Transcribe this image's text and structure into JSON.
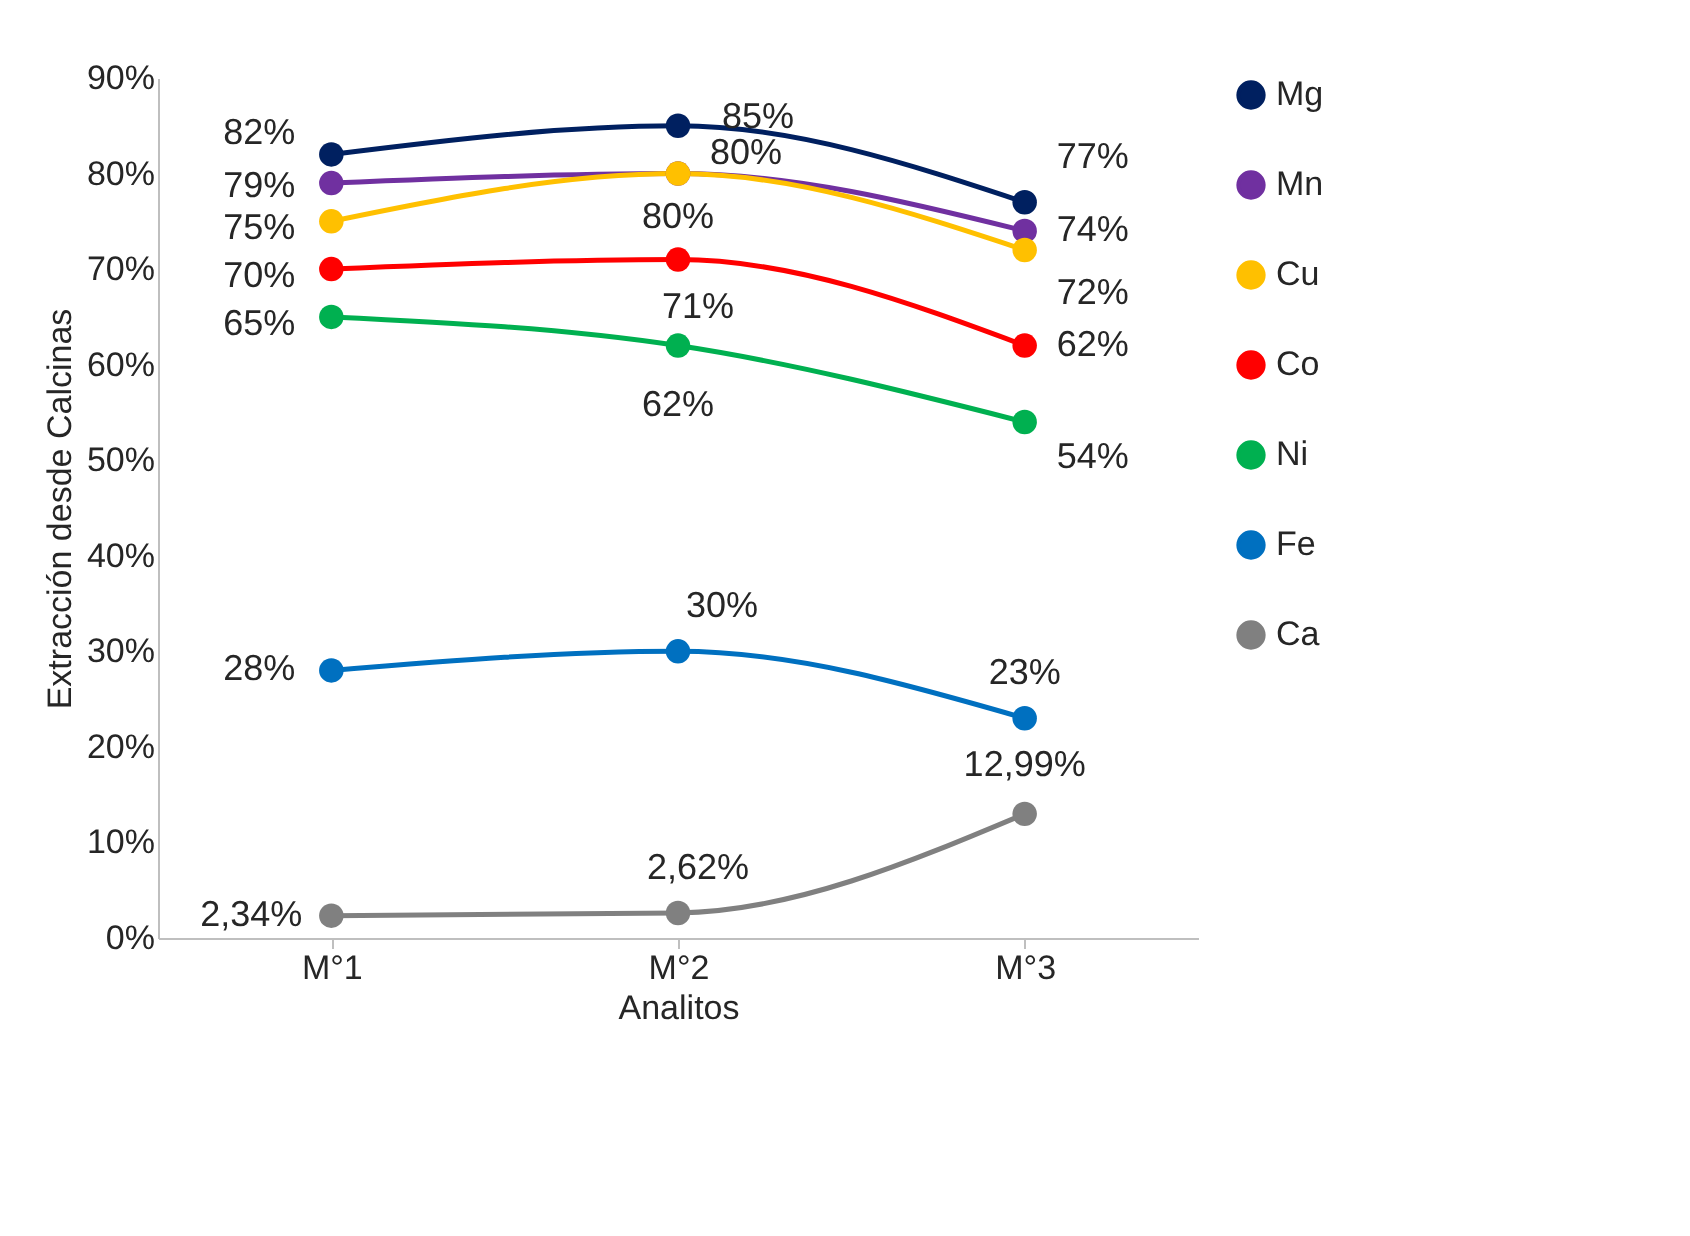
{
  "chart_data": {
    "type": "line",
    "xlabel": "Analitos",
    "ylabel": "Extracción desde Calcinas",
    "categories": [
      "M°1",
      "M°2",
      "M°3"
    ],
    "ylim": [
      0,
      90
    ],
    "yticks": [
      {
        "value": 0,
        "label": "0%"
      },
      {
        "value": 10,
        "label": "10%"
      },
      {
        "value": 20,
        "label": "20%"
      },
      {
        "value": 30,
        "label": "30%"
      },
      {
        "value": 40,
        "label": "40%"
      },
      {
        "value": 50,
        "label": "50%"
      },
      {
        "value": 60,
        "label": "60%"
      },
      {
        "value": 70,
        "label": "70%"
      },
      {
        "value": 80,
        "label": "80%"
      },
      {
        "value": 90,
        "label": "90%"
      }
    ],
    "grid": false,
    "legend": "right",
    "marker": "circle",
    "line_style": "solid",
    "series": [
      {
        "name": "Mg",
        "color": "#002060",
        "values": [
          82,
          85,
          77
        ],
        "value_labels": [
          "82%",
          "85%",
          "77%"
        ]
      },
      {
        "name": "Mn",
        "color": "#7030a0",
        "values": [
          79,
          80,
          74
        ],
        "value_labels": [
          "79%",
          "80%",
          "74%"
        ]
      },
      {
        "name": "Cu",
        "color": "#ffc000",
        "values": [
          75,
          80,
          72
        ],
        "value_labels": [
          "75%",
          "80%",
          "72%"
        ]
      },
      {
        "name": "Co",
        "color": "#ff0000",
        "values": [
          70,
          71,
          62
        ],
        "value_labels": [
          "70%",
          "71%",
          "62%"
        ]
      },
      {
        "name": "Ni",
        "color": "#00b050",
        "values": [
          65,
          62,
          54
        ],
        "value_labels": [
          "65%",
          "62%",
          "54%"
        ]
      },
      {
        "name": "Fe",
        "color": "#0070c0",
        "values": [
          28,
          30,
          23
        ],
        "value_labels": [
          "28%",
          "30%",
          "23%"
        ]
      },
      {
        "name": "Ca",
        "color": "#808080",
        "values": [
          2.34,
          2.62,
          12.99
        ],
        "value_labels": [
          "2,34%",
          "2,62%",
          "12,99%"
        ]
      }
    ]
  }
}
